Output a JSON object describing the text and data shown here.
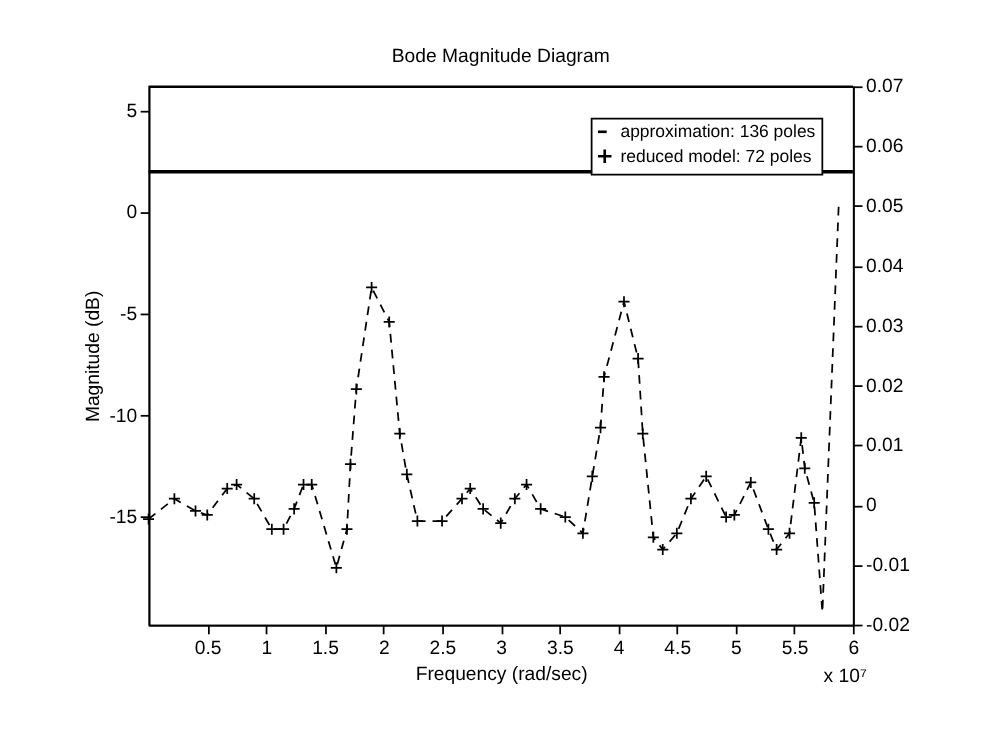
{
  "chart_data": {
    "type": "line",
    "title": "Bode Magnitude Diagram",
    "xlabel": "Frequency (rad/sec)",
    "ylabel": "Magnitude (dB)",
    "x": [
      0,
      0.22,
      0.4,
      0.5,
      0.67,
      0.75,
      0.9,
      1.05,
      1.15,
      1.24,
      1.32,
      1.39,
      1.6,
      1.69,
      1.72,
      1.77,
      1.9,
      2.05,
      2.14,
      2.2,
      2.29,
      2.5,
      2.67,
      2.74,
      2.85,
      3.0,
      3.12,
      3.22,
      3.34,
      3.55,
      3.7,
      3.78,
      3.85,
      3.88,
      4.05,
      4.17,
      4.21,
      4.3,
      4.38,
      4.5,
      4.62,
      4.75,
      4.92,
      4.99,
      5.13,
      5.28,
      5.35,
      5.46,
      5.56,
      5.59,
      5.67,
      5.74,
      5.88
    ],
    "series": [
      {
        "name": "approximation: 136 poles",
        "color": "#000000",
        "line_style": "dashed",
        "values": [
          -15.1,
          -14.1,
          -14.7,
          -14.9,
          -13.6,
          -13.4,
          -14.1,
          -15.6,
          -15.6,
          -14.6,
          -13.4,
          -13.4,
          -17.5,
          -15.6,
          -12.4,
          -8.7,
          -3.7,
          -5.4,
          -10.9,
          -12.9,
          -15.2,
          -15.2,
          -14.1,
          -13.6,
          -14.6,
          -15.3,
          -14.1,
          -13.4,
          -14.6,
          -15.0,
          -15.8,
          -13.0,
          -10.6,
          -8.1,
          -4.4,
          -7.2,
          -10.9,
          -16.0,
          -16.6,
          -15.8,
          -14.1,
          -13.0,
          -15.0,
          -14.9,
          -13.3,
          -15.6,
          -16.6,
          -15.8,
          -11.1,
          -12.6,
          -14.3,
          -19.7,
          0.5
        ]
      },
      {
        "name": "reduced model: 72 poles",
        "type": "scatter",
        "color": "#000000",
        "marker": "cross",
        "values": [
          -15.1,
          -14.1,
          -14.7,
          -14.9,
          -13.6,
          -13.4,
          -14.1,
          -15.6,
          -15.6,
          -14.6,
          -13.4,
          -13.4,
          -17.5,
          -15.6,
          -12.4,
          -8.7,
          -3.7,
          -5.4,
          -10.9,
          -12.9,
          -15.2,
          -15.2,
          -14.1,
          -13.6,
          -14.6,
          -15.3,
          -14.1,
          -13.4,
          -14.6,
          -15.0,
          -15.8,
          -13.0,
          -10.6,
          -8.1,
          -4.4,
          -7.2,
          -10.9,
          -16.0,
          -16.6,
          -15.8,
          -14.1,
          -13.0,
          -15.0,
          -14.9,
          -13.3,
          -15.6,
          -16.6,
          -15.8,
          -11.1,
          -12.6,
          -14.3,
          null,
          null
        ]
      }
    ],
    "xlim": [
      0,
      6
    ],
    "xticks": [
      0.5,
      1,
      1.5,
      2,
      2.5,
      3,
      3.5,
      4,
      4.5,
      5,
      5.5,
      6
    ],
    "ylim": [
      -20.3,
      6.2
    ],
    "yticks": [
      -15,
      -10,
      -5,
      0,
      5
    ],
    "y2lim": [
      -0.02,
      0.07
    ],
    "y2ticks": [
      -0.02,
      -0.01,
      0,
      0.01,
      0.02,
      0.03,
      0.04,
      0.05,
      0.06,
      0.07
    ],
    "ref_lines": [
      {
        "axis": "y",
        "value": 2,
        "color": "#000000",
        "line_style": "solid"
      }
    ],
    "annotations": [
      "x 10⁷"
    ],
    "grid": false,
    "legend": "top right"
  }
}
